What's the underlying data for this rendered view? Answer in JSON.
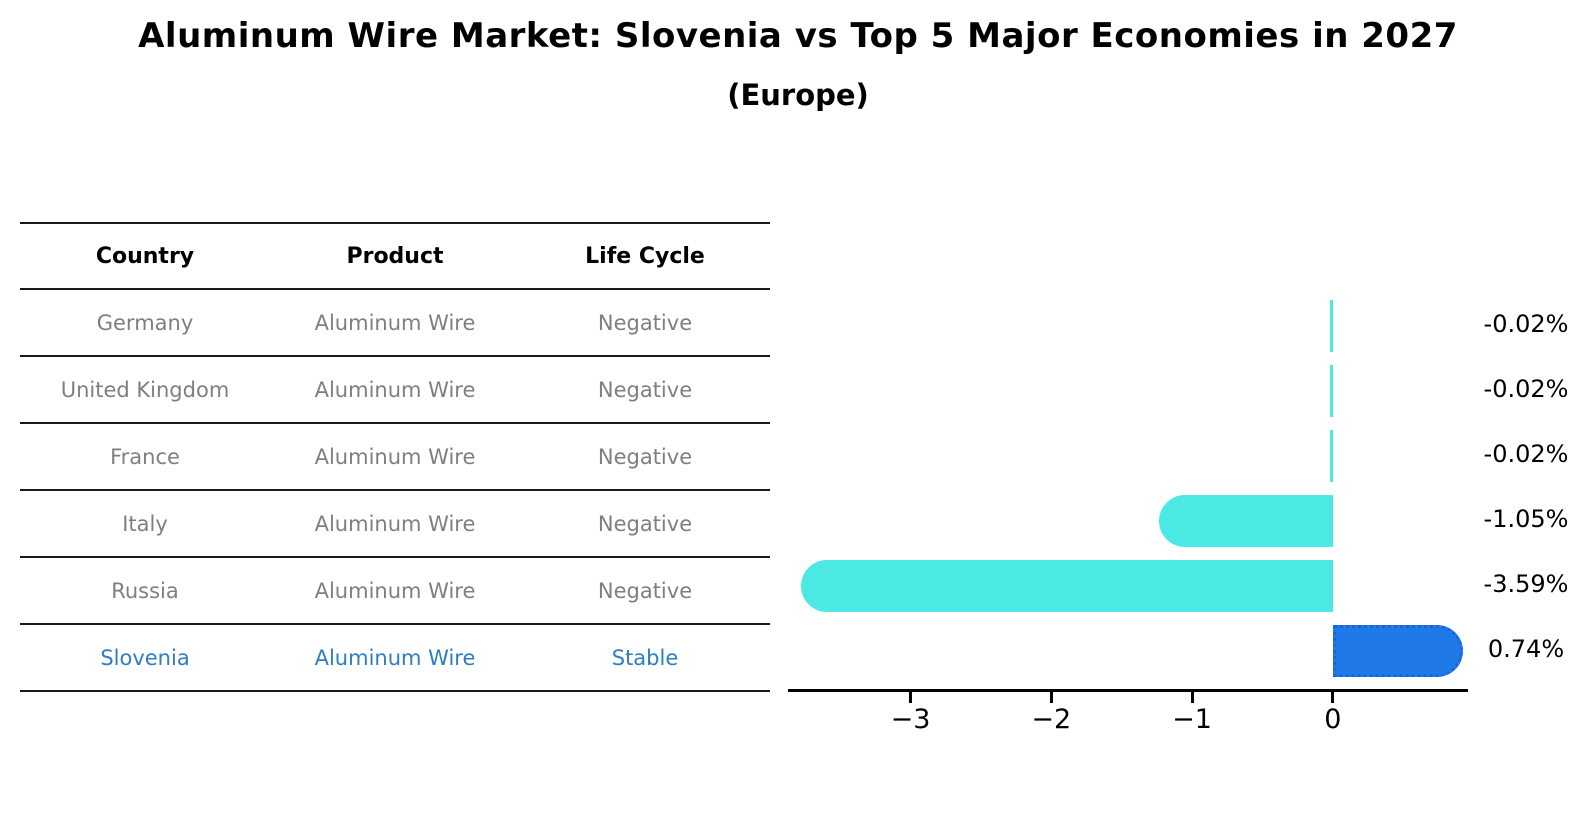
{
  "title": "Aluminum Wire Market: Slovenia vs Top 5 Major Economies in 2027",
  "subtitle": "(Europe)",
  "table": {
    "headers": [
      "Country",
      "Product",
      "Life Cycle"
    ],
    "rows": [
      {
        "country": "Germany",
        "product": "Aluminum Wire",
        "life_cycle": "Negative",
        "highlight": false
      },
      {
        "country": "United Kingdom",
        "product": "Aluminum Wire",
        "life_cycle": "Negative",
        "highlight": false
      },
      {
        "country": "France",
        "product": "Aluminum Wire",
        "life_cycle": "Negative",
        "highlight": false
      },
      {
        "country": "Italy",
        "product": "Aluminum Wire",
        "life_cycle": "Negative",
        "highlight": false
      },
      {
        "country": "Russia",
        "product": "Aluminum Wire",
        "life_cycle": "Negative",
        "highlight": false
      },
      {
        "country": "Slovenia",
        "product": "Aluminum Wire",
        "life_cycle": "Stable",
        "highlight": true
      }
    ]
  },
  "chart_data": {
    "type": "bar",
    "orientation": "horizontal",
    "title": "Aluminum Wire Market: Slovenia vs Top 5 Major Economies in 2027",
    "subtitle": "(Europe)",
    "categories": [
      "Germany",
      "United Kingdom",
      "France",
      "Italy",
      "Russia",
      "Slovenia"
    ],
    "values": [
      -0.02,
      -0.02,
      -0.02,
      -1.05,
      -3.59,
      0.74
    ],
    "value_labels": [
      "-0.02%",
      "-0.02%",
      "-0.02%",
      "-1.05%",
      "-3.59%",
      "0.74%"
    ],
    "unit": "percent",
    "x_ticks": [
      -3,
      -2,
      -1,
      0
    ],
    "x_tick_labels": [
      "−3",
      "−2",
      "−1",
      "0"
    ],
    "xlim": [
      -3.87,
      0.96
    ],
    "grid": false,
    "legend": false,
    "highlight_category": "Slovenia",
    "highlight_style": "dotted-border",
    "colors": {
      "negative_bar": "#4be8e4",
      "highlight_bar": "#2079e8",
      "highlight_text": "#2f7dc3",
      "table_text": "#7f7f7f",
      "axis": "#000000"
    }
  }
}
